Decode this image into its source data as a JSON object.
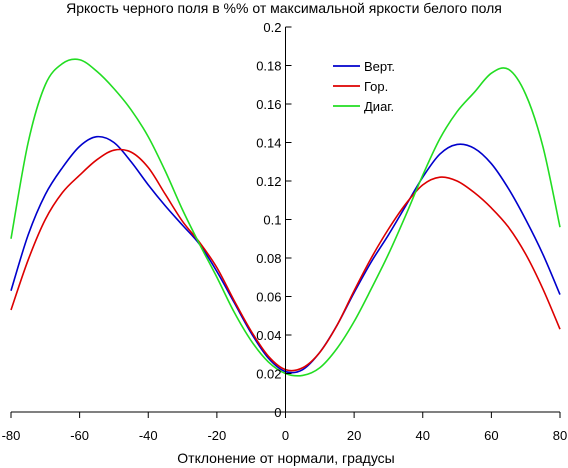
{
  "chart_data": {
    "type": "line",
    "title": "Яркость черного поля в %% от максимальной яркости белого поля",
    "xlabel": "Отклонение от нормали, градусы",
    "ylabel": "",
    "xlim": [
      -80,
      80
    ],
    "ylim": [
      0,
      0.2
    ],
    "x_ticks": [
      "-80",
      "-60",
      "-40",
      "-20",
      "0",
      "20",
      "40",
      "60",
      "80"
    ],
    "y_ticks": [
      "0",
      "0.02",
      "0.04",
      "0.06",
      "0.08",
      "0.1",
      "0.12",
      "0.14",
      "0.16",
      "0.18",
      "0.2"
    ],
    "grid": false,
    "legend_position": "top-right",
    "x": [
      -80,
      -75,
      -70,
      -65,
      -60,
      -55,
      -50,
      -45,
      -40,
      -35,
      -30,
      -25,
      -20,
      -15,
      -10,
      -5,
      0,
      5,
      10,
      15,
      20,
      25,
      30,
      35,
      40,
      45,
      50,
      55,
      60,
      65,
      70,
      75,
      80
    ],
    "series": [
      {
        "name": "Верт.",
        "color": "#0000cc",
        "values": [
          0.063,
          0.092,
          0.113,
          0.127,
          0.138,
          0.143,
          0.14,
          0.13,
          0.118,
          0.107,
          0.097,
          0.087,
          0.073,
          0.057,
          0.041,
          0.028,
          0.021,
          0.022,
          0.031,
          0.045,
          0.062,
          0.078,
          0.092,
          0.107,
          0.122,
          0.134,
          0.139,
          0.137,
          0.129,
          0.116,
          0.1,
          0.082,
          0.061
        ]
      },
      {
        "name": "Гор.",
        "color": "#dd0000",
        "values": [
          0.053,
          0.079,
          0.1,
          0.114,
          0.123,
          0.131,
          0.136,
          0.135,
          0.127,
          0.113,
          0.099,
          0.088,
          0.075,
          0.058,
          0.042,
          0.029,
          0.022,
          0.023,
          0.031,
          0.045,
          0.063,
          0.08,
          0.095,
          0.108,
          0.118,
          0.122,
          0.12,
          0.114,
          0.106,
          0.096,
          0.082,
          0.064,
          0.043
        ]
      },
      {
        "name": "Диаг.",
        "color": "#22dd22",
        "values": [
          0.09,
          0.14,
          0.17,
          0.181,
          0.183,
          0.177,
          0.168,
          0.157,
          0.143,
          0.125,
          0.105,
          0.087,
          0.07,
          0.052,
          0.037,
          0.026,
          0.02,
          0.019,
          0.023,
          0.033,
          0.047,
          0.064,
          0.082,
          0.102,
          0.123,
          0.142,
          0.156,
          0.166,
          0.176,
          0.178,
          0.165,
          0.138,
          0.096
        ]
      }
    ]
  }
}
